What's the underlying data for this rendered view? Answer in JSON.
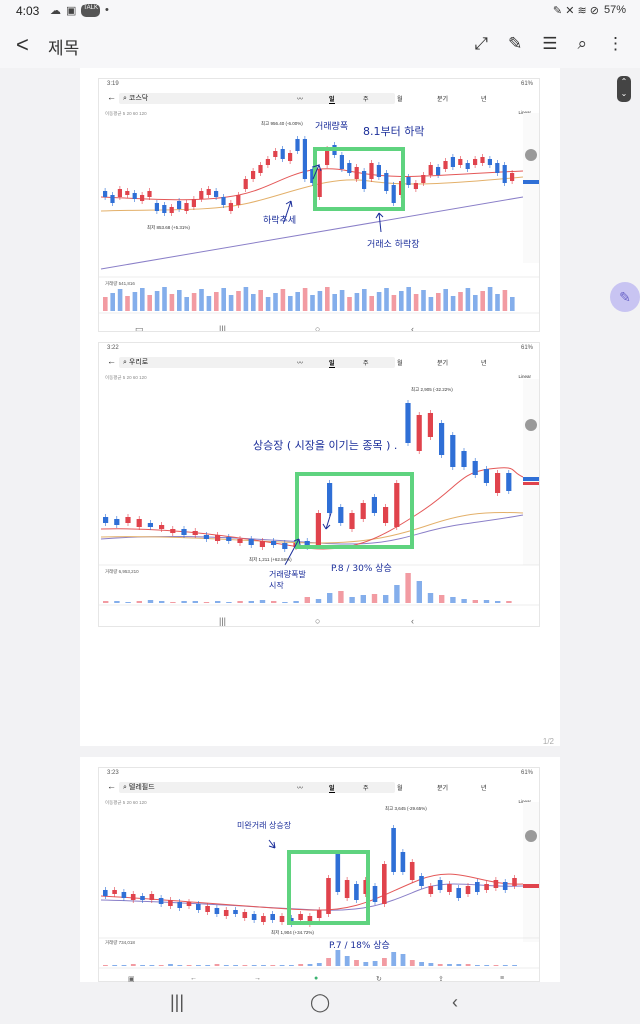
{
  "status": {
    "time": "4:03",
    "battery": "57%",
    "small_icons": [
      "☁",
      "▣",
      "TALK",
      "•"
    ],
    "right_icons": "✎ ✕ ≋ ⊘"
  },
  "header": {
    "title": "제목",
    "back_icon": "<",
    "icons": [
      "expand-icon",
      "edit-icon",
      "document-icon",
      "search-icon",
      "more-icon"
    ]
  },
  "pager": "1/2",
  "shots": [
    {
      "time": "3:19",
      "status_right": "61%",
      "search": "코스닥",
      "tabs": [
        "일",
        "주",
        "월",
        "분기",
        "년"
      ],
      "ma_legend": "이동평균 5 20 60 120",
      "scale": "Linear",
      "high_label": "최고 956.40 (-6.00%)",
      "low_label": "최저 853.68 (+5.31%)",
      "volume_label": "거래량 541,816",
      "annotations": [
        "거래량폭",
        "8.1부터 하락",
        "하락추세",
        "거래소 하락장"
      ]
    },
    {
      "time": "3:22",
      "status_right": "61%",
      "search": "우리로",
      "tabs": [
        "일",
        "주",
        "월",
        "분기",
        "년"
      ],
      "ma_legend": "이동평균 5 20 60 120",
      "scale": "Linear",
      "high_label": "최고 2,905 (-32.22%)",
      "low_label": "최저 1,211 (+62.59%)",
      "volume_label": "거래량 6,953,210",
      "annotations": [
        "상승장 ( 시장을 이기는 종목 ) .",
        "거래량폭발 시작",
        "P.8 / 30% 상승"
      ]
    },
    {
      "time": "3:23",
      "status_right": "61%",
      "search": "텔레필드",
      "tabs": [
        "일",
        "주",
        "월",
        "분기",
        "년"
      ],
      "ma_legend": "이동평균 5 20 60 120",
      "scale": "Linear",
      "high_label": "최고 3,645 (-29.65%)",
      "low_label": "최저 1,904 (+34.72%)",
      "volume_label": "거래량 734,018",
      "annotations": [
        "미완거래 상승장",
        "P.7 / 18% 상승"
      ]
    }
  ],
  "colors": {
    "up": "#e0434c",
    "down": "#2f6fd6",
    "box": "#5fd37f",
    "annotation": "#1b2e9a"
  }
}
